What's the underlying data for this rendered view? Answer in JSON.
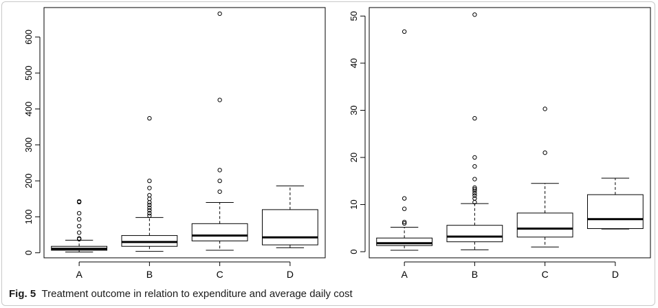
{
  "caption": {
    "label": "Fig. 5",
    "text": "Treatment outcome in relation to expenditure and average daily cost"
  },
  "colors": {
    "ink": "#000000",
    "frame": "#c8c8c8"
  },
  "chart_data": [
    {
      "type": "boxplot",
      "title": "",
      "xlabel": "",
      "ylabel": "",
      "categories": [
        "A",
        "B",
        "C",
        "D"
      ],
      "yticks": [
        0,
        100,
        200,
        300,
        400,
        500,
        600
      ],
      "ylim": [
        -14,
        682
      ],
      "boxes": [
        {
          "category": "A",
          "whisker_low": 2,
          "q1": 7,
          "median": 11,
          "q3": 18,
          "whisker_high": 35,
          "outliers": [
            38,
            40,
            56,
            74,
            93,
            110,
            141,
            143
          ]
        },
        {
          "category": "B",
          "whisker_low": 4,
          "q1": 18,
          "median": 30,
          "q3": 48,
          "whisker_high": 98,
          "outliers": [
            103,
            110,
            118,
            125,
            133,
            140,
            150,
            160,
            180,
            200,
            374
          ]
        },
        {
          "category": "C",
          "whisker_low": 7,
          "q1": 33,
          "median": 48,
          "q3": 81,
          "whisker_high": 140,
          "outliers": [
            170,
            200,
            230,
            425,
            665
          ]
        },
        {
          "category": "D",
          "whisker_low": 14,
          "q1": 22,
          "median": 43,
          "q3": 120,
          "whisker_high": 186,
          "outliers": []
        }
      ]
    },
    {
      "type": "boxplot",
      "title": "",
      "xlabel": "",
      "ylabel": "",
      "categories": [
        "A",
        "B",
        "C",
        "D"
      ],
      "yticks": [
        0,
        10,
        20,
        30,
        40,
        50
      ],
      "ylim": [
        -1.3,
        51.8
      ],
      "boxes": [
        {
          "category": "A",
          "whisker_low": 0.3,
          "q1": 1.3,
          "median": 1.8,
          "q3": 2.9,
          "whisker_high": 5.2,
          "outliers": [
            6.0,
            6.3,
            9.1,
            11.3,
            46.7
          ]
        },
        {
          "category": "B",
          "whisker_low": 0.4,
          "q1": 2.1,
          "median": 3.2,
          "q3": 5.6,
          "whisker_high": 10.2,
          "outliers": [
            10.5,
            11.3,
            11.9,
            12.4,
            12.9,
            13.3,
            13.6,
            15.4,
            18.1,
            20.0,
            28.3,
            50.3
          ]
        },
        {
          "category": "C",
          "whisker_low": 1.0,
          "q1": 3.1,
          "median": 4.9,
          "q3": 8.2,
          "whisker_high": 14.5,
          "outliers": [
            21.0,
            30.3
          ]
        },
        {
          "category": "D",
          "whisker_low": 4.8,
          "q1": 4.9,
          "median": 6.9,
          "q3": 12.1,
          "whisker_high": 15.6,
          "outliers": []
        }
      ]
    }
  ]
}
